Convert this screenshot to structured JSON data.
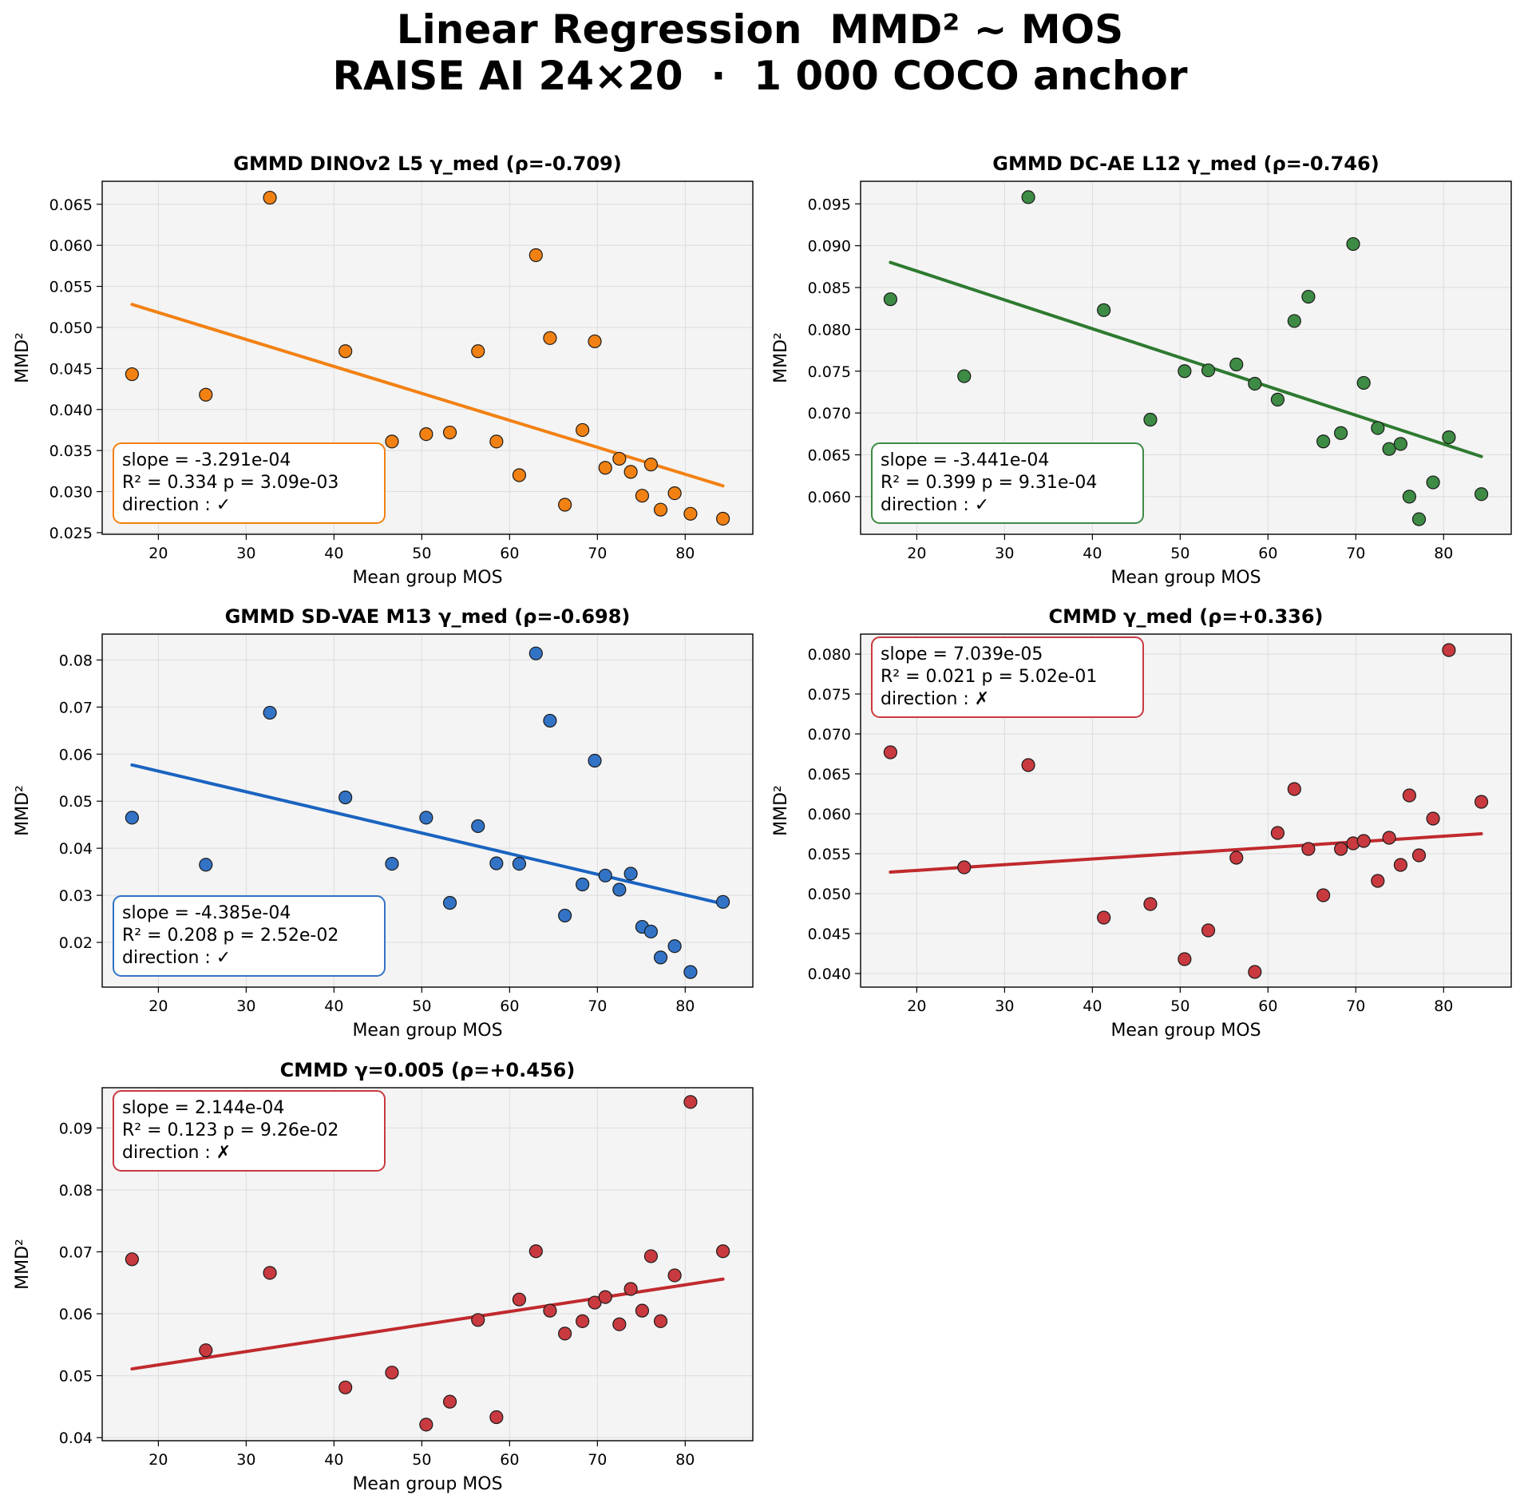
{
  "figure": {
    "title_line1": "Linear Regression  MMD² ~ MOS",
    "title_line2": "RAISE AI 24×20  ·  1 000 COCO anchor",
    "x": [
      17.0,
      25.4,
      32.7,
      41.3,
      46.6,
      50.5,
      53.2,
      56.4,
      58.5,
      61.1,
      63.0,
      64.6,
      66.3,
      68.3,
      69.7,
      70.9,
      72.5,
      73.8,
      75.1,
      76.1,
      77.2,
      78.8,
      80.6,
      84.3
    ]
  },
  "chart_data": [
    {
      "type": "scatter",
      "title": "GMMD DINOv2 L5 γ_med  (ρ=-0.709)",
      "xlabel": "Mean group MOS",
      "ylabel": "MMD²",
      "xlim": [
        13.6,
        87.7
      ],
      "ylim": [
        0.0248,
        0.0678
      ],
      "xticks": [
        "20",
        "30",
        "40",
        "50",
        "60",
        "70",
        "80"
      ],
      "yticks": [
        "0.025",
        "0.030",
        "0.035",
        "0.040",
        "0.045",
        "0.050",
        "0.055",
        "0.060",
        "0.065"
      ],
      "y": [
        0.0443,
        0.0418,
        0.0658,
        0.0471,
        0.0361,
        0.037,
        0.0372,
        0.0471,
        0.0361,
        0.032,
        0.0588,
        0.0487,
        0.0284,
        0.0375,
        0.0483,
        0.0329,
        0.034,
        0.0324,
        0.0295,
        0.0333,
        0.0278,
        0.0298,
        0.0273,
        0.0267
      ],
      "fit": [
        [
          17.0,
          0.0528
        ],
        [
          84.3,
          0.0307
        ]
      ],
      "color": "#f28113",
      "fit_color": "#f28113",
      "box_color": "#f28113",
      "box_pos": "bottom-left",
      "stats": [
        "slope = -3.291e-04",
        "R² = 0.334   p = 3.09e-03",
        "direction : ✓"
      ]
    },
    {
      "type": "scatter",
      "title": "GMMD DC-AE L12 γ_med  (ρ=-0.746)",
      "xlabel": "Mean group MOS",
      "ylabel": "MMD²",
      "xlim": [
        13.6,
        87.7
      ],
      "ylim": [
        0.0555,
        0.0977
      ],
      "xticks": [
        "20",
        "30",
        "40",
        "50",
        "60",
        "70",
        "80"
      ],
      "yticks": [
        "0.060",
        "0.065",
        "0.070",
        "0.075",
        "0.080",
        "0.085",
        "0.090",
        "0.095"
      ],
      "y": [
        0.0836,
        0.0744,
        0.0958,
        0.0823,
        0.0692,
        0.075,
        0.0751,
        0.0758,
        0.0735,
        0.0716,
        0.081,
        0.0839,
        0.0666,
        0.0676,
        0.0902,
        0.0736,
        0.0682,
        0.0657,
        0.0663,
        0.06,
        0.0573,
        0.0617,
        0.0671,
        0.0603
      ],
      "fit": [
        [
          17.0,
          0.088
        ],
        [
          84.3,
          0.0648
        ]
      ],
      "color": "#3d8b44",
      "fit_color": "#2e7a30",
      "box_color": "#3d8b44",
      "box_pos": "bottom-left",
      "stats": [
        "slope = -3.441e-04",
        "R² = 0.399   p = 9.31e-04",
        "direction : ✓"
      ]
    },
    {
      "type": "scatter",
      "title": "GMMD SD-VAE M13 γ_med  (ρ=-0.698)",
      "xlabel": "Mean group MOS",
      "ylabel": "MMD²",
      "xlim": [
        13.6,
        87.7
      ],
      "ylim": [
        0.0105,
        0.0855
      ],
      "xticks": [
        "20",
        "30",
        "40",
        "50",
        "60",
        "70",
        "80"
      ],
      "yticks": [
        "0.02",
        "0.03",
        "0.04",
        "0.05",
        "0.06",
        "0.07",
        "0.08"
      ],
      "y": [
        0.0465,
        0.0365,
        0.0688,
        0.0508,
        0.0367,
        0.0465,
        0.0284,
        0.0447,
        0.0368,
        0.0367,
        0.0814,
        0.0671,
        0.0257,
        0.0323,
        0.0586,
        0.0342,
        0.0312,
        0.0346,
        0.0233,
        0.0223,
        0.0168,
        0.0192,
        0.0137,
        0.0286
      ],
      "fit": [
        [
          17.0,
          0.0577
        ],
        [
          84.3,
          0.0282
        ]
      ],
      "color": "#3273c6",
      "fit_color": "#1a64c0",
      "box_color": "#3273c6",
      "box_pos": "bottom-left",
      "stats": [
        "slope = -4.385e-04",
        "R² = 0.208   p = 2.52e-02",
        "direction : ✓"
      ]
    },
    {
      "type": "scatter",
      "title": "CMMD γ_med  (ρ=+0.336)",
      "xlabel": "Mean group MOS",
      "ylabel": "MMD²",
      "xlim": [
        13.6,
        87.7
      ],
      "ylim": [
        0.0383,
        0.0825
      ],
      "xticks": [
        "20",
        "30",
        "40",
        "50",
        "60",
        "70",
        "80"
      ],
      "yticks": [
        "0.040",
        "0.045",
        "0.050",
        "0.055",
        "0.060",
        "0.065",
        "0.070",
        "0.075",
        "0.080"
      ],
      "y": [
        0.0677,
        0.0533,
        0.0661,
        0.047,
        0.0487,
        0.0418,
        0.0454,
        0.0545,
        0.0402,
        0.0576,
        0.0631,
        0.0556,
        0.0498,
        0.0556,
        0.0563,
        0.0566,
        0.0516,
        0.057,
        0.0536,
        0.0623,
        0.0548,
        0.0594,
        0.0805,
        0.0615
      ],
      "fit": [
        [
          17.0,
          0.0527
        ],
        [
          84.3,
          0.0575
        ]
      ],
      "color": "#c83a3f",
      "fit_color": "#c02a2e",
      "box_color": "#c83a3f",
      "box_pos": "top-left",
      "stats": [
        "slope = 7.039e-05",
        "R² = 0.021   p = 5.02e-01",
        "direction : ✗"
      ]
    },
    {
      "type": "scatter",
      "title": "CMMD γ=0.005  (ρ=+0.456)",
      "xlabel": "Mean group MOS",
      "ylabel": "MMD²",
      "xlim": [
        13.6,
        87.7
      ],
      "ylim": [
        0.0395,
        0.0965
      ],
      "xticks": [
        "20",
        "30",
        "40",
        "50",
        "60",
        "70",
        "80"
      ],
      "yticks": [
        "0.04",
        "0.05",
        "0.06",
        "0.07",
        "0.08",
        "0.09"
      ],
      "y": [
        0.0688,
        0.0541,
        0.0666,
        0.0481,
        0.0505,
        0.0421,
        0.0458,
        0.059,
        0.0433,
        0.0623,
        0.0701,
        0.0605,
        0.0568,
        0.0588,
        0.0618,
        0.0627,
        0.0583,
        0.064,
        0.0605,
        0.0693,
        0.0588,
        0.0662,
        0.0942,
        0.0701
      ],
      "fit": [
        [
          17.0,
          0.0511
        ],
        [
          84.3,
          0.0656
        ]
      ],
      "color": "#c83a3f",
      "fit_color": "#c02a2e",
      "box_color": "#c83a3f",
      "box_pos": "top-left",
      "stats": [
        "slope = 2.144e-04",
        "R² = 0.123   p = 9.26e-02",
        "direction : ✗"
      ]
    }
  ]
}
